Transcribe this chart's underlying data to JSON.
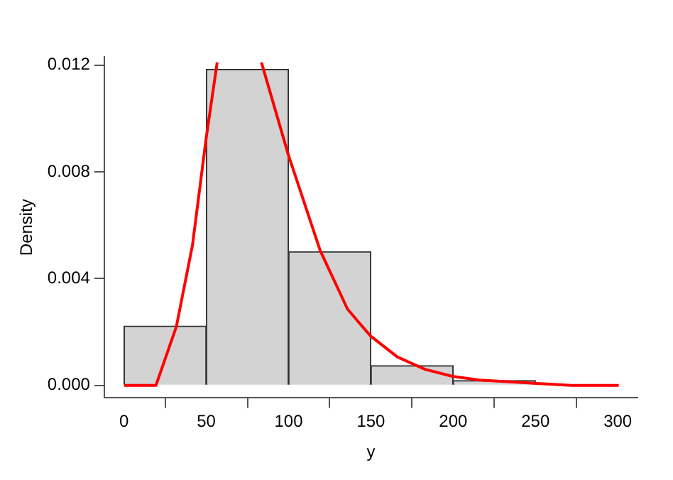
{
  "chart_data": {
    "type": "histogram",
    "xlabel": "y",
    "ylabel": "Density",
    "bins": [
      0,
      50,
      100,
      150,
      200,
      250,
      300
    ],
    "values": [
      0.00222,
      0.01184,
      0.00501,
      0.00074,
      0.00018,
      0
    ],
    "color": "#d3d3d3",
    "series": [
      {
        "type": "line",
        "color": "#ff0000",
        "marker": "none",
        "line_style": "solid",
        "x": [
          0,
          19.4,
          31.8,
          41.6,
          49.9,
          56.6,
          70,
          83.5,
          99.8,
          119.2,
          135.8,
          149.6,
          166.2,
          182.9,
          199.5,
          216,
          243.8,
          271.5,
          300.6
        ],
        "values": [
          0,
          0,
          0.0022,
          0.00525,
          0.00925,
          0.0121,
          null,
          0.0121,
          0.00865,
          0.00505,
          0.00286,
          0.00186,
          0.00106,
          0.0006,
          0.00034,
          0.0002,
          0.0001,
          0,
          0
        ]
      }
    ],
    "xlim": [
      -12,
      312
    ],
    "ylim": [
      -0.00047,
      0.01231
    ],
    "xticks": [
      0,
      50,
      100,
      150,
      200,
      250,
      300
    ],
    "yticks": [
      {
        "value": 0,
        "label": "0.000"
      },
      {
        "value": 0.004,
        "label": "0.004"
      },
      {
        "value": 0.008,
        "label": "0.008"
      },
      {
        "value": 0.012,
        "label": "0.012"
      }
    ]
  }
}
